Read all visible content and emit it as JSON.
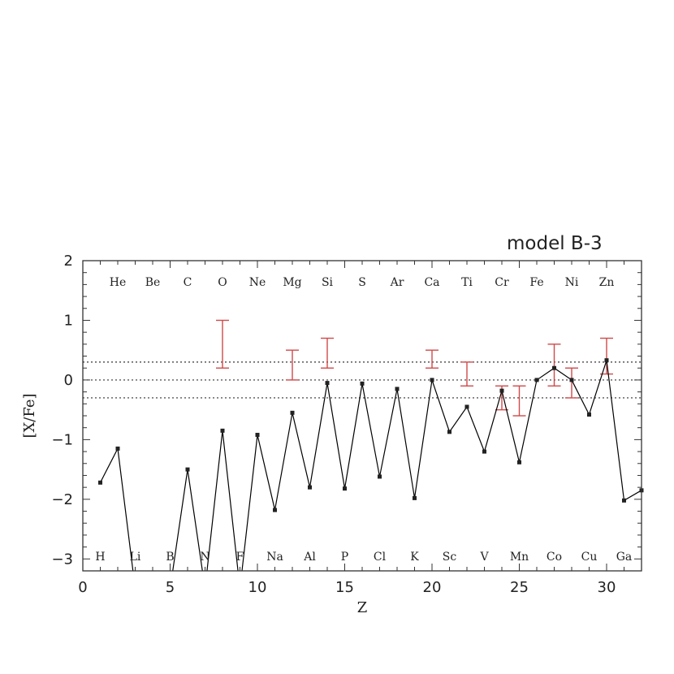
{
  "chart_data": {
    "type": "scatter",
    "title": "model B-3",
    "xlabel": "Z",
    "ylabel": "[X/Fe]",
    "xlim": [
      0,
      32
    ],
    "ylim": [
      -3.2,
      2
    ],
    "x_ticks": [
      0,
      5,
      10,
      15,
      20,
      25,
      30
    ],
    "x_tick_labels": [
      "0",
      "5",
      "10",
      "15",
      "20",
      "25",
      "30"
    ],
    "y_ticks": [
      -3,
      -2,
      -1,
      0,
      1,
      2
    ],
    "y_tick_labels": [
      "−3",
      "−2",
      "−1",
      "0",
      "1",
      "2"
    ],
    "reference_lines": [
      0.3,
      0,
      -0.3
    ],
    "series": [
      {
        "type": "line",
        "color": "#000000",
        "points": [
          [
            1,
            -1.72
          ],
          [
            2,
            -1.15
          ],
          [
            3,
            -3.5
          ],
          [
            4,
            -3.5
          ],
          [
            5,
            -3.5
          ],
          [
            6,
            -1.5
          ],
          [
            7,
            -3.5
          ],
          [
            8,
            -0.85
          ],
          [
            9,
            -3.5
          ],
          [
            10,
            -0.92
          ],
          [
            11,
            -2.18
          ],
          [
            12,
            -0.55
          ],
          [
            13,
            -1.8
          ],
          [
            14,
            -0.05
          ],
          [
            15,
            -1.82
          ],
          [
            16,
            -0.06
          ],
          [
            17,
            -1.62
          ],
          [
            18,
            -0.15
          ],
          [
            19,
            -1.98
          ],
          [
            20,
            0.0
          ],
          [
            21,
            -0.87
          ],
          [
            22,
            -0.45
          ],
          [
            23,
            -1.2
          ],
          [
            24,
            -0.18
          ],
          [
            25,
            -1.38
          ],
          [
            26,
            0.0
          ],
          [
            27,
            0.2
          ],
          [
            28,
            0.0
          ],
          [
            29,
            -0.58
          ],
          [
            30,
            0.33
          ],
          [
            31,
            -2.02
          ],
          [
            32,
            -1.85
          ]
        ]
      },
      {
        "type": "errorbar",
        "color": "#d04a4a",
        "bars": [
          {
            "x": 8,
            "low": 0.2,
            "high": 1.0
          },
          {
            "x": 12,
            "low": 0.0,
            "high": 0.5
          },
          {
            "x": 14,
            "low": 0.2,
            "high": 0.7
          },
          {
            "x": 20,
            "low": 0.2,
            "high": 0.5
          },
          {
            "x": 22,
            "low": -0.1,
            "high": 0.3
          },
          {
            "x": 24,
            "low": -0.5,
            "high": -0.1
          },
          {
            "x": 25,
            "low": -0.6,
            "high": -0.1
          },
          {
            "x": 27,
            "low": -0.1,
            "high": 0.6
          },
          {
            "x": 28,
            "low": -0.3,
            "high": 0.2
          },
          {
            "x": 30,
            "low": 0.1,
            "high": 0.7
          }
        ]
      }
    ],
    "element_labels_top": [
      {
        "z": 2,
        "label": "He"
      },
      {
        "z": 4,
        "label": "Be"
      },
      {
        "z": 6,
        "label": "C"
      },
      {
        "z": 8,
        "label": "O"
      },
      {
        "z": 10,
        "label": "Ne"
      },
      {
        "z": 12,
        "label": "Mg"
      },
      {
        "z": 14,
        "label": "Si"
      },
      {
        "z": 16,
        "label": "S"
      },
      {
        "z": 18,
        "label": "Ar"
      },
      {
        "z": 20,
        "label": "Ca"
      },
      {
        "z": 22,
        "label": "Ti"
      },
      {
        "z": 24,
        "label": "Cr"
      },
      {
        "z": 26,
        "label": "Fe"
      },
      {
        "z": 28,
        "label": "Ni"
      },
      {
        "z": 30,
        "label": "Zn"
      }
    ],
    "element_labels_bottom": [
      {
        "z": 1,
        "label": "H"
      },
      {
        "z": 3,
        "label": "Li"
      },
      {
        "z": 5,
        "label": "B"
      },
      {
        "z": 7,
        "label": "N"
      },
      {
        "z": 9,
        "label": "F"
      },
      {
        "z": 11,
        "label": "Na"
      },
      {
        "z": 13,
        "label": "Al"
      },
      {
        "z": 15,
        "label": "P"
      },
      {
        "z": 17,
        "label": "Cl"
      },
      {
        "z": 19,
        "label": "K"
      },
      {
        "z": 21,
        "label": "Sc"
      },
      {
        "z": 23,
        "label": "V"
      },
      {
        "z": 25,
        "label": "Mn"
      },
      {
        "z": 27,
        "label": "Co"
      },
      {
        "z": 29,
        "label": "Cu"
      },
      {
        "z": 31,
        "label": "Ga"
      }
    ]
  }
}
